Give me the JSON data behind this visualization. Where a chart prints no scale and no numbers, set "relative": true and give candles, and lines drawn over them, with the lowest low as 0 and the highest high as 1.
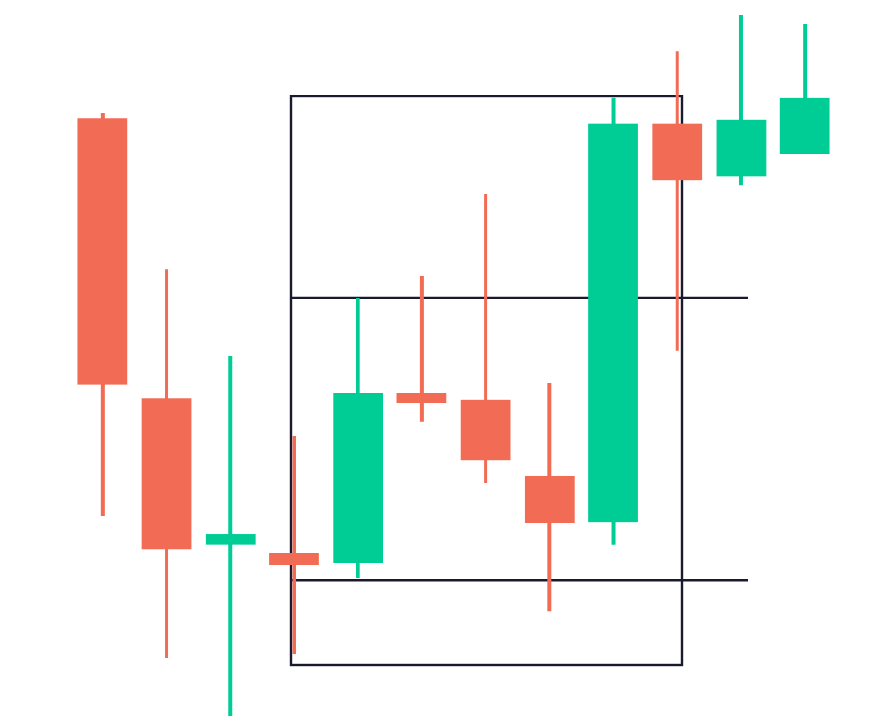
{
  "chart_data": {
    "type": "candlestick",
    "relative": true,
    "ref_lines": [
      {
        "axis": "y",
        "value": 0.596,
        "color": "#1a1a2e"
      },
      {
        "axis": "y",
        "value": 0.194,
        "color": "#1a1a2e"
      }
    ],
    "categories": [
      null,
      null,
      null,
      null,
      null,
      null,
      null,
      null,
      null,
      null,
      null,
      null
    ],
    "ohlc": [
      [
        0.852,
        0.86,
        0.285,
        0.472
      ],
      [
        0.453,
        0.637,
        0.083,
        0.238
      ],
      [
        0.244,
        0.513,
        0,
        0.259
      ],
      [
        0.233,
        0.399,
        0.088,
        0.215
      ],
      [
        0.218,
        0.596,
        0.197,
        0.461
      ],
      [
        0.461,
        0.627,
        0.42,
        0.446
      ],
      [
        0.451,
        0.744,
        0.332,
        0.365
      ],
      [
        0.342,
        0.474,
        0.15,
        0.275
      ],
      [
        0.277,
        0.881,
        0.244,
        0.845
      ],
      [
        0.845,
        0.948,
        0.521,
        0.764
      ],
      [
        0.769,
        1,
        0.756,
        0.85
      ],
      [
        0.801,
        0.987,
        0.801,
        0.881
      ]
    ],
    "colors": [
      "#f26b55",
      "#f26b55",
      "#00cc96",
      "#f26b55",
      "#00cc96",
      "#f26b55",
      "#f26b55",
      "#f26b55",
      "#00cc96",
      "#f26b55",
      "#00cc96",
      "#00cc96"
    ]
  }
}
